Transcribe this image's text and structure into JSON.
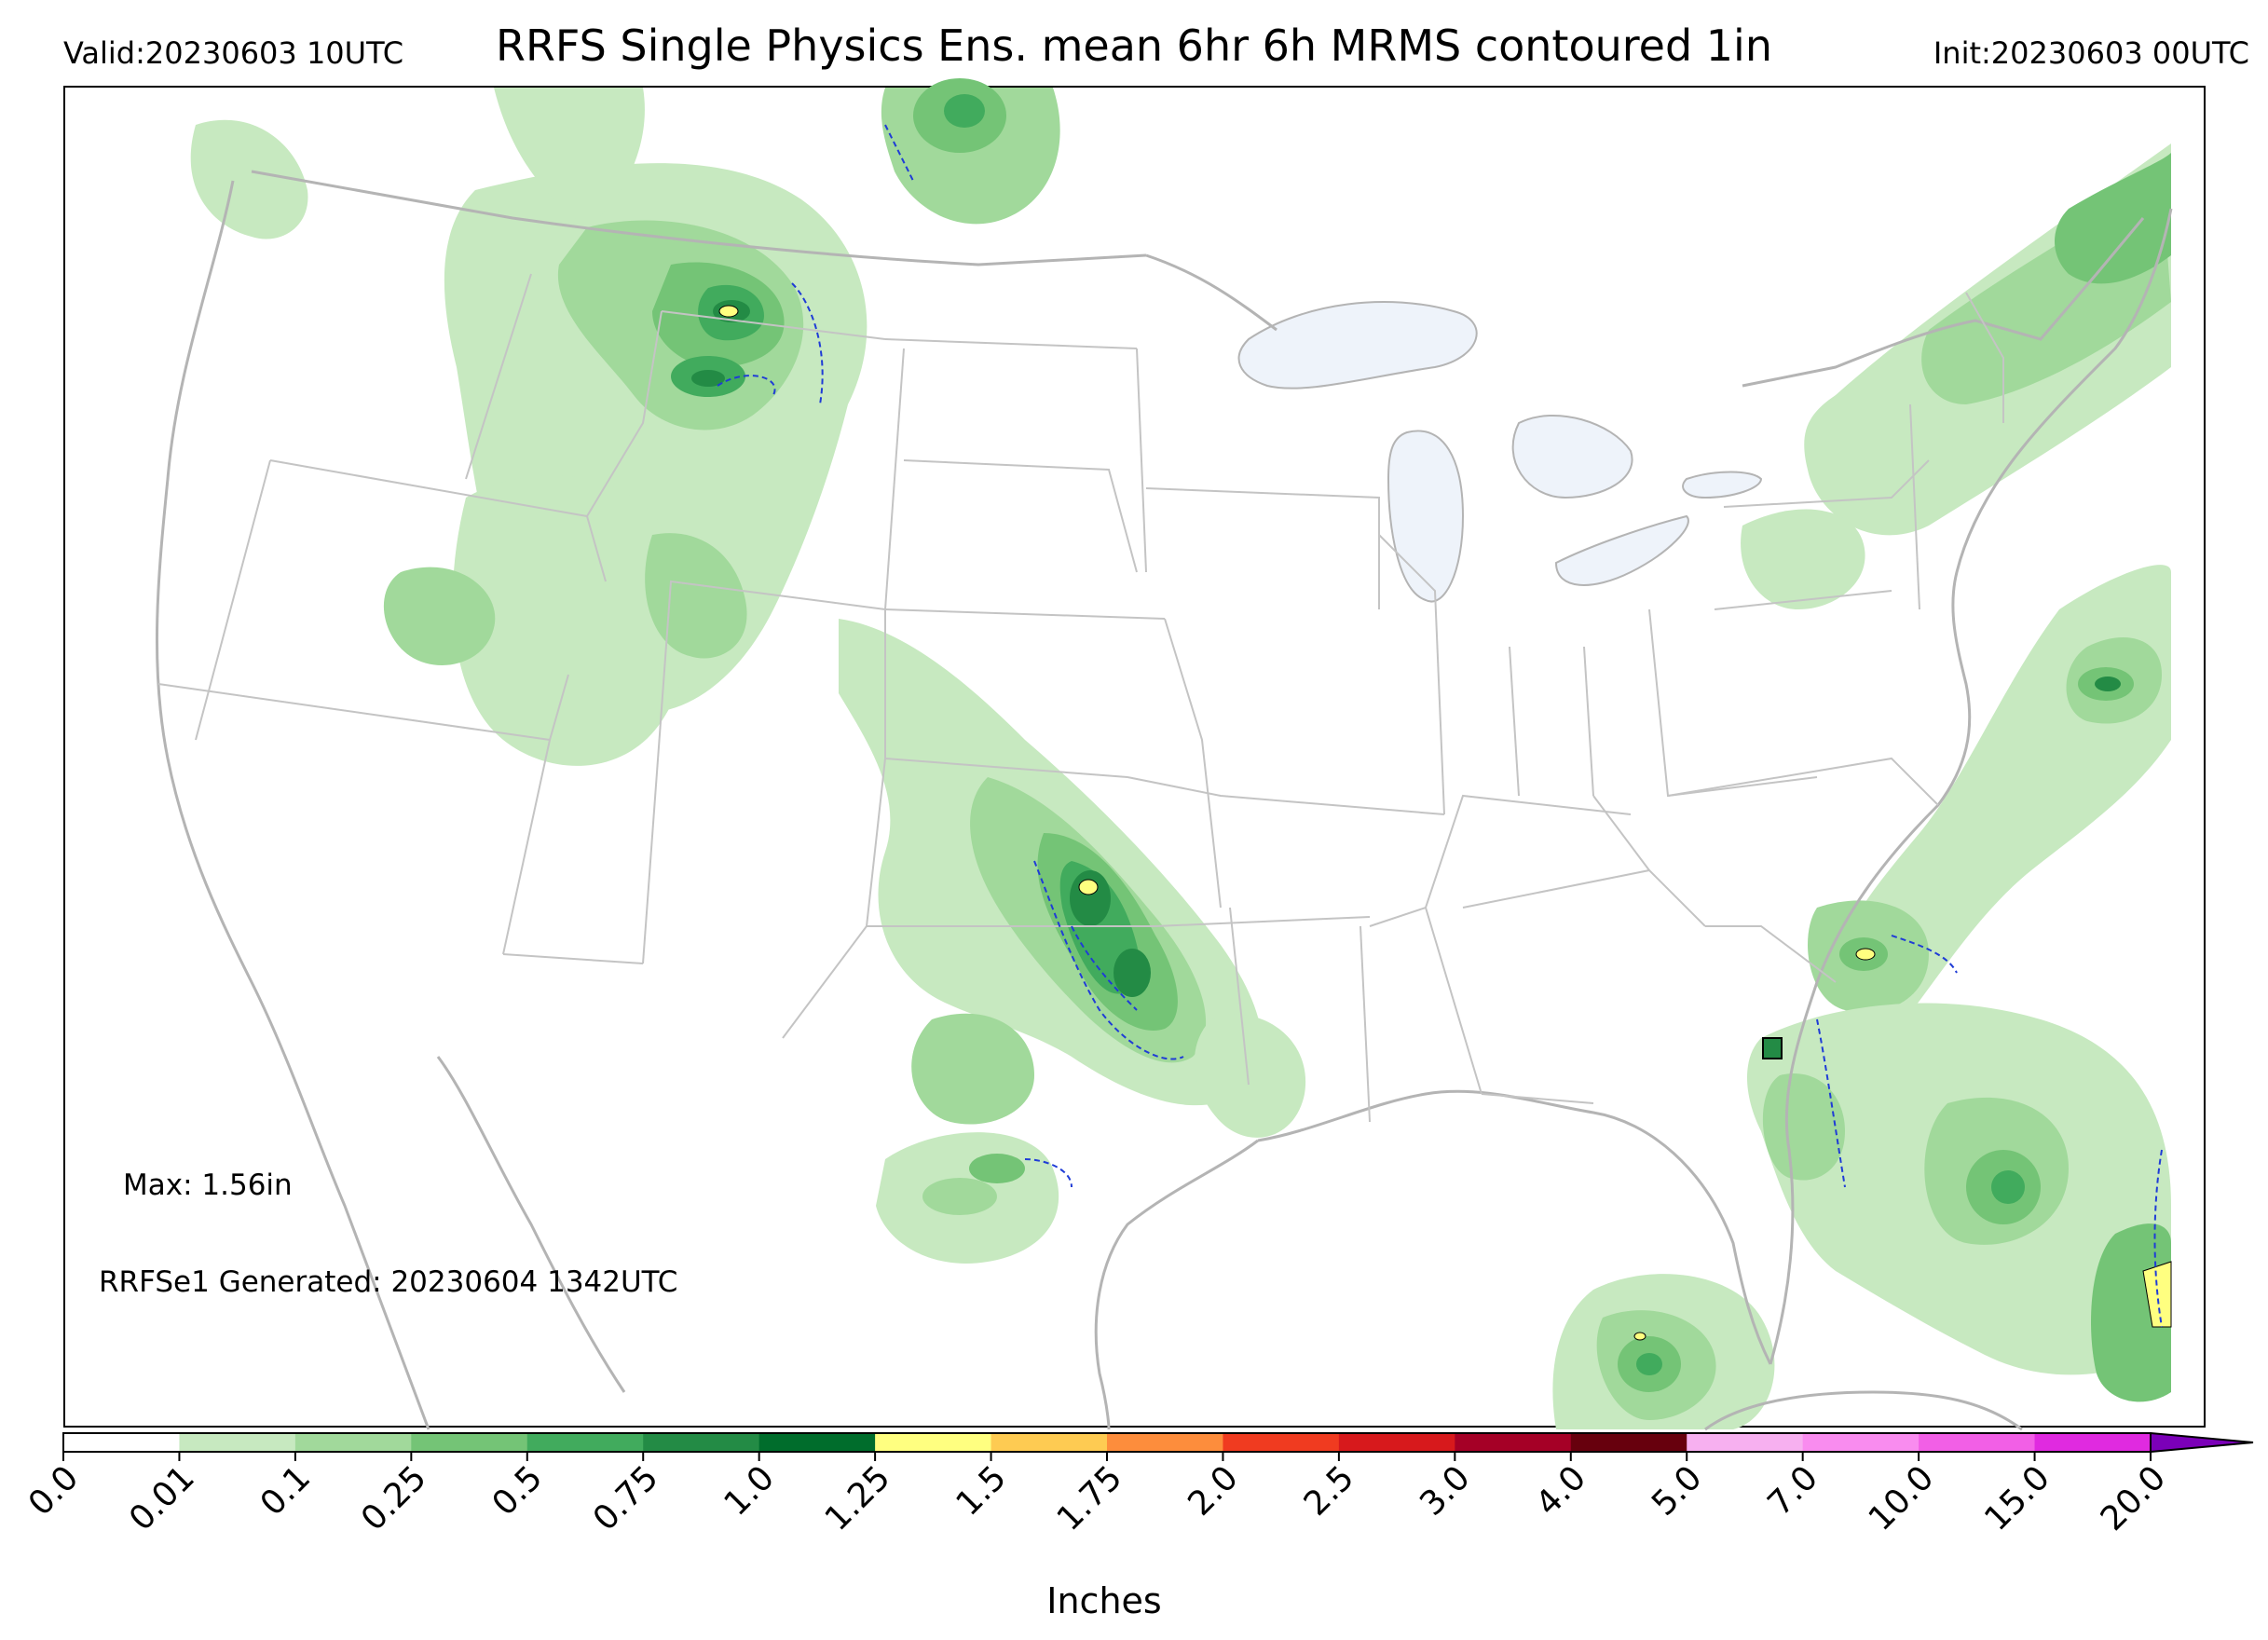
{
  "header": {
    "valid": "Valid:20230603 10UTC",
    "title": "RRFS Single Physics Ens. mean 6hr 6h MRMS contoured 1in",
    "init": "Init:20230603 00UTC"
  },
  "annotations": {
    "max": "Max: 1.56in",
    "generated": "RRFSe1 Generated: 20230604 1342UTC"
  },
  "colorbar": {
    "label": "Inches",
    "ticks": [
      "0.0",
      "0.01",
      "0.1",
      "0.25",
      "0.5",
      "0.75",
      "1.0",
      "1.25",
      "1.5",
      "1.75",
      "2.0",
      "2.5",
      "3.0",
      "4.0",
      "5.0",
      "7.0",
      "10.0",
      "15.0",
      "20.0"
    ],
    "colors": [
      "#ffffff",
      "#c7e9c0",
      "#a1d99b",
      "#74c476",
      "#41ab5d",
      "#238b45",
      "#006d2c",
      "#ffff80",
      "#fecb52",
      "#fd8d3c",
      "#f03b20",
      "#d7191c",
      "#a50026",
      "#67000d",
      "#f7b0f0",
      "#f98cef",
      "#f25fe6",
      "#e02ae0",
      "#b010d8",
      "#7b00b8"
    ]
  },
  "map": {
    "background": "#ffffff",
    "border_color": "#b4b4b4",
    "lake_color": "#eef3fa",
    "mrms_contour_color": "#1f3cd6"
  }
}
